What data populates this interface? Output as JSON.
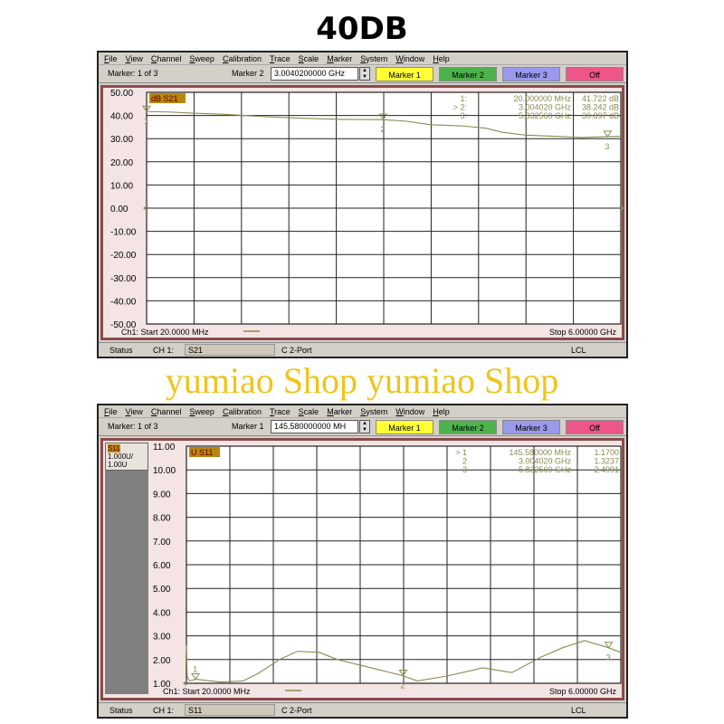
{
  "title": "40DB",
  "watermark": "yumiao Shop yumiao Shop",
  "menu": [
    "File",
    "View",
    "Channel",
    "Sweep",
    "Calibration",
    "Trace",
    "Scale",
    "Marker",
    "System",
    "Window",
    "Help"
  ],
  "buttons": {
    "m1": "Marker 1",
    "m2": "Marker 2",
    "m3": "Marker 3",
    "off": "Off"
  },
  "colors": {
    "m1": "#ffff33",
    "m2": "#4cb34c",
    "m3": "#9999ee",
    "off": "#ee5588",
    "trace": "#8a8a50",
    "marker_text": "#8a8a50"
  },
  "window1": {
    "marker_count": "Marker: 1 of 3",
    "marker_label": "Marker 2",
    "marker_value": "3.0040200000 GHz",
    "trace_label": "dB S21",
    "start": "Ch1: Start  20.0000 MHz",
    "stop": "Stop  6.00000 GHz",
    "markers": [
      {
        "id": "1:",
        "freq": "20.000000 MHz",
        "val": "41.722 dB"
      },
      {
        "id": "> 2:",
        "freq": "3.004020 GHz",
        "val": "38.242 dB"
      },
      {
        "id": "3:",
        "freq": "5.832560 GHz",
        "val": "30.897 dB"
      }
    ],
    "status": {
      "status": "Status",
      "ch": "CH 1:",
      "param": "S21",
      "port": "C  2-Port",
      "lcl": "LCL"
    }
  },
  "window2": {
    "marker_count": "Marker: 1 of 3",
    "marker_label": "Marker 1",
    "marker_value": "145.580000000 MH",
    "trace_label": "U S11",
    "side": [
      "S11",
      "1.000U/",
      "1.00U"
    ],
    "start": "Ch1: Start  20.0000 MHz",
    "stop": "Stop  6.00000 GHz",
    "markers": [
      {
        "id": "> 1",
        "freq": "145.580000 MHz",
        "val": "1.1700"
      },
      {
        "id": "2",
        "freq": "3.004020 GHz",
        "val": "1.3237"
      },
      {
        "id": "3",
        "freq": "5.832560 GHz",
        "val": "2.4991"
      }
    ],
    "status": {
      "status": "Status",
      "ch": "CH 1:",
      "param": "S11",
      "port": "C  2-Port",
      "lcl": "LCL"
    }
  },
  "chart_data": [
    {
      "type": "line",
      "trace": "dB S21",
      "xunit": "GHz",
      "xlim": [
        0.02,
        6.0
      ],
      "ylim": [
        -50,
        50
      ],
      "grid": true,
      "yticks": [
        "50.00",
        "40.00",
        "30.00",
        "20.00",
        "10.00",
        "0.00",
        "-10.00",
        "-20.00",
        "-30.00",
        "-40.00",
        "-50.00"
      ],
      "x": [
        0.02,
        0.3,
        0.6,
        1.0,
        1.5,
        2.0,
        2.5,
        3.0,
        3.3,
        3.6,
        4.0,
        4.3,
        4.5,
        4.8,
        5.2,
        5.5,
        5.83,
        6.0
      ],
      "y": [
        41.7,
        41.5,
        41.0,
        40.5,
        39.5,
        38.8,
        38.3,
        38.2,
        37.5,
        36.0,
        35.5,
        34.5,
        32.8,
        31.5,
        31.0,
        30.5,
        30.9,
        31.0
      ],
      "markers": [
        {
          "n": "1",
          "x": 0.02,
          "y": 41.722
        },
        {
          "n": "2",
          "x": 3.00402,
          "y": 38.242
        },
        {
          "n": "3",
          "x": 5.83256,
          "y": 30.897
        }
      ]
    },
    {
      "type": "line",
      "trace": "U S11",
      "xunit": "GHz",
      "xlim": [
        0.02,
        6.0
      ],
      "ylim": [
        1,
        11
      ],
      "grid": true,
      "yticks": [
        "11.00",
        "10.00",
        "9.00",
        "8.00",
        "7.00",
        "6.00",
        "5.00",
        "4.00",
        "3.00",
        "2.00",
        "1.00"
      ],
      "x": [
        0.02,
        0.03,
        0.06,
        0.15,
        0.5,
        0.8,
        1.0,
        1.3,
        1.55,
        1.85,
        2.1,
        2.5,
        3.0,
        3.2,
        3.6,
        4.1,
        4.5,
        4.9,
        5.2,
        5.5,
        5.83,
        6.0
      ],
      "y": [
        2.6,
        1.3,
        1.1,
        1.17,
        1.05,
        1.1,
        1.4,
        2.0,
        2.35,
        2.3,
        2.0,
        1.7,
        1.32,
        1.1,
        1.3,
        1.65,
        1.45,
        2.1,
        2.5,
        2.8,
        2.5,
        2.3
      ],
      "markers": [
        {
          "n": "1",
          "x": 0.14558,
          "y": 1.17
        },
        {
          "n": "2",
          "x": 3.00402,
          "y": 1.3237
        },
        {
          "n": "3",
          "x": 5.83256,
          "y": 2.4991
        }
      ]
    }
  ]
}
